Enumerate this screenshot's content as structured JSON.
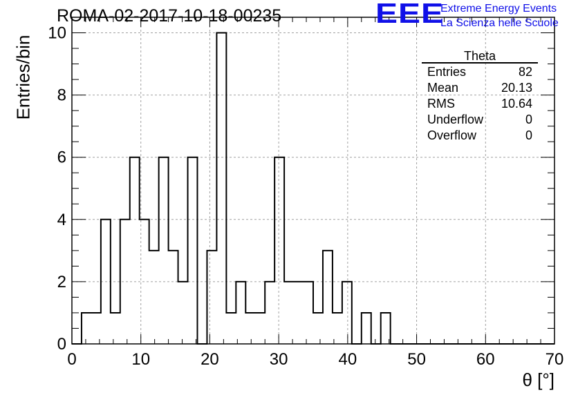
{
  "header": {
    "run_title": "ROMA-02-2017-10-18-00235",
    "logo_text": "EEE",
    "org_line1": "Extreme Energy Events",
    "org_line2": "La Scienza nelle Scuole"
  },
  "colors": {
    "logo": "#1010e8",
    "histogram": "#000000",
    "grid": "#a0a0a0"
  },
  "stats_box": {
    "title": "Theta",
    "rows": [
      {
        "label": "Entries",
        "value": "82"
      },
      {
        "label": "Mean",
        "value": "20.13"
      },
      {
        "label": "RMS",
        "value": "10.64"
      },
      {
        "label": "Underflow",
        "value": "0"
      },
      {
        "label": "Overflow",
        "value": "0"
      }
    ]
  },
  "chart_data": {
    "type": "histogram",
    "xlabel": "θ [°]",
    "ylabel": "Entries/bin",
    "xlim": [
      0,
      70
    ],
    "ylim": [
      0,
      10.5
    ],
    "xticks": [
      0,
      10,
      20,
      30,
      40,
      50,
      60,
      70
    ],
    "yticks": [
      0,
      2,
      4,
      6,
      8,
      10
    ],
    "grid": true,
    "bin_edges": [
      0,
      1.4,
      2.8,
      4.2,
      5.6,
      7.0,
      8.4,
      9.8,
      11.2,
      12.6,
      14.0,
      15.4,
      16.8,
      18.2,
      19.6,
      21.0,
      22.4,
      23.8,
      25.2,
      26.6,
      28.0,
      29.4,
      30.8,
      32.2,
      33.6,
      35.0,
      36.4,
      37.8,
      39.2,
      40.6,
      42.0,
      43.4,
      44.8,
      46.2,
      47.6,
      49.0,
      50.4,
      51.8,
      53.2,
      54.6,
      56.0,
      57.4,
      58.8,
      60.2,
      61.6,
      63.0,
      64.4,
      65.8,
      67.2,
      68.6,
      70.0
    ],
    "counts": [
      0,
      1,
      1,
      4,
      1,
      4,
      6,
      4,
      3,
      6,
      3,
      2,
      6,
      0,
      3,
      10,
      1,
      2,
      1,
      1,
      2,
      6,
      2,
      2,
      2,
      1,
      3,
      1,
      2,
      0,
      1,
      0,
      1,
      0,
      0,
      0,
      0,
      0,
      0,
      0,
      0,
      0,
      0,
      0,
      0,
      0,
      0,
      0,
      0,
      0
    ]
  }
}
